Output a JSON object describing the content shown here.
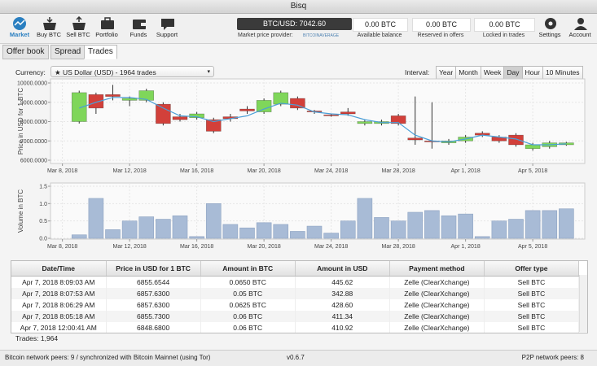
{
  "window_title": "Bisq",
  "nav": [
    "Market",
    "Buy BTC",
    "Sell BTC",
    "Portfolio",
    "Funds",
    "Support"
  ],
  "nav_right": [
    "Settings",
    "Account"
  ],
  "price_box": {
    "value": "BTC/USD: 7042.60",
    "provider_label": "Market price provider:",
    "provider": "BITCOINAVERAGE"
  },
  "balances": [
    {
      "value": "0.00 BTC",
      "label": "Available balance"
    },
    {
      "value": "0.00 BTC",
      "label": "Reserved in offers"
    },
    {
      "value": "0.00 BTC",
      "label": "Locked in trades"
    }
  ],
  "tabs": [
    "Offer book",
    "Spread",
    "Trades"
  ],
  "currency": {
    "label": "Currency:",
    "value": "★ US Dollar (USD) - 1964 trades"
  },
  "interval": {
    "label": "Interval:",
    "options": [
      "Year",
      "Month",
      "Week",
      "Day",
      "Hour",
      "10 Minutes"
    ],
    "selected_index": 3
  },
  "chart_data": [
    {
      "type": "candlestick",
      "y_label": "Price in USD for 1 BTC",
      "x": [
        "Mar 9, 2018",
        "Mar 10, 2018",
        "Mar 11, 2018",
        "Mar 12, 2018",
        "Mar 13, 2018",
        "Mar 14, 2018",
        "Mar 15, 2018",
        "Mar 16, 2018",
        "Mar 17, 2018",
        "Mar 18, 2018",
        "Mar 19, 2018",
        "Mar 20, 2018",
        "Mar 21, 2018",
        "Mar 22, 2018",
        "Mar 23, 2018",
        "Mar 24, 2018",
        "Mar 25, 2018",
        "Mar 26, 2018",
        "Mar 27, 2018",
        "Mar 28, 2018",
        "Mar 29, 2018",
        "Mar 30, 2018",
        "Mar 31, 2018",
        "Apr 1, 2018",
        "Apr 2, 2018",
        "Apr 3, 2018",
        "Apr 4, 2018",
        "Apr 5, 2018",
        "Apr 6, 2018",
        "Apr 7, 2018"
      ],
      "open": [
        8000,
        9400,
        9400,
        9100,
        9100,
        8900,
        8250,
        8200,
        8100,
        8250,
        8650,
        8500,
        8900,
        9200,
        8550,
        8350,
        8500,
        7900,
        7900,
        8300,
        7150,
        7000,
        6900,
        7000,
        7400,
        7200,
        7300,
        6600,
        6700,
        6800
      ],
      "high": [
        9600,
        9500,
        9900,
        9300,
        9700,
        9000,
        8400,
        8500,
        8200,
        8400,
        8800,
        9200,
        9600,
        9300,
        8600,
        8400,
        8700,
        8100,
        8100,
        8400,
        9300,
        9000,
        7100,
        7300,
        7500,
        7300,
        7400,
        6900,
        7000,
        6950
      ],
      "low": [
        7900,
        8400,
        9100,
        8800,
        9000,
        7800,
        8000,
        8100,
        7400,
        8000,
        8400,
        8400,
        8800,
        8600,
        8400,
        8250,
        8300,
        7800,
        7800,
        7800,
        6800,
        6600,
        6800,
        6900,
        7200,
        6900,
        6700,
        6500,
        6600,
        6750
      ],
      "close": [
        9500,
        8700,
        9300,
        9200,
        9600,
        7900,
        8100,
        8400,
        7500,
        8150,
        8550,
        9100,
        9500,
        8700,
        8500,
        8300,
        8400,
        8000,
        8000,
        7900,
        7050,
        6950,
        7000,
        7200,
        7300,
        7000,
        6800,
        6800,
        6900,
        6900
      ],
      "average": [
        8700,
        9000,
        9250,
        9250,
        9150,
        8700,
        8300,
        8250,
        8000,
        8150,
        8300,
        8650,
        8950,
        8850,
        8500,
        8400,
        8350,
        8100,
        7950,
        7950,
        7300,
        7000,
        6950,
        7100,
        7300,
        7200,
        7100,
        6800,
        6800,
        6850
      ],
      "up_color": "#7fd65a",
      "down_color": "#d2403a",
      "line_color": "#4a9fd8",
      "grid": true,
      "xlim": [
        "Mar 7, 2018",
        "Apr 8, 2018"
      ],
      "xticks": [
        "Mar 8, 2018",
        "Mar 12, 2018",
        "Mar 16, 2018",
        "Mar 20, 2018",
        "Mar 24, 2018",
        "Mar 28, 2018",
        "Apr 1, 2018",
        "Apr 5, 2018"
      ],
      "ylim": [
        6000,
        10000
      ],
      "yticks": [
        {
          "value": 6000,
          "label": "6000.0000"
        },
        {
          "value": 7000,
          "label": "7000.0000"
        },
        {
          "value": 8000,
          "label": "8000.0000"
        },
        {
          "value": 9000,
          "label": "9000.0000"
        },
        {
          "value": 10000,
          "label": "10000.0000"
        }
      ]
    },
    {
      "type": "bar",
      "y_label": "Volume in BTC",
      "x": [
        "Mar 9, 2018",
        "Mar 10, 2018",
        "Mar 11, 2018",
        "Mar 12, 2018",
        "Mar 13, 2018",
        "Mar 14, 2018",
        "Mar 15, 2018",
        "Mar 16, 2018",
        "Mar 17, 2018",
        "Mar 18, 2018",
        "Mar 19, 2018",
        "Mar 20, 2018",
        "Mar 21, 2018",
        "Mar 22, 2018",
        "Mar 23, 2018",
        "Mar 24, 2018",
        "Mar 25, 2018",
        "Mar 26, 2018",
        "Mar 27, 2018",
        "Mar 28, 2018",
        "Mar 29, 2018",
        "Mar 30, 2018",
        "Mar 31, 2018",
        "Apr 1, 2018",
        "Apr 2, 2018",
        "Apr 3, 2018",
        "Apr 4, 2018",
        "Apr 5, 2018",
        "Apr 6, 2018",
        "Apr 7, 2018"
      ],
      "values": [
        0.1,
        1.15,
        0.25,
        0.5,
        0.62,
        0.55,
        0.65,
        0.05,
        1.0,
        0.4,
        0.3,
        0.45,
        0.4,
        0.2,
        0.35,
        0.15,
        0.5,
        1.15,
        0.6,
        0.5,
        0.75,
        0.8,
        0.65,
        0.7,
        0.05,
        0.5,
        0.55,
        0.8,
        0.8,
        0.85
      ],
      "color": "#a8bbd6",
      "grid": true,
      "xlim": [
        "Mar 7, 2018",
        "Apr 8, 2018"
      ],
      "xticks": [
        "Mar 8, 2018",
        "Mar 12, 2018",
        "Mar 16, 2018",
        "Mar 20, 2018",
        "Mar 24, 2018",
        "Mar 28, 2018",
        "Apr 1, 2018",
        "Apr 5, 2018"
      ],
      "ylim": [
        0,
        1.5
      ],
      "yticks": [
        {
          "value": 0,
          "label": "0.0"
        },
        {
          "value": 0.5,
          "label": "0.5"
        },
        {
          "value": 1,
          "label": "1.0"
        },
        {
          "value": 1.5,
          "label": "1.5"
        }
      ]
    }
  ],
  "table": {
    "columns": [
      "Date/Time",
      "Price in USD for 1 BTC",
      "Amount in BTC",
      "Amount in USD",
      "Payment method",
      "Offer type"
    ],
    "rows": [
      [
        "Apr 7, 2018 8:09:03 AM",
        "6855.6544",
        "0.0650 BTC",
        "445.62",
        "Zelle (ClearXchange)",
        "Sell BTC"
      ],
      [
        "Apr 7, 2018 8:07:53 AM",
        "6857.6300",
        "0.05 BTC",
        "342.88",
        "Zelle (ClearXchange)",
        "Sell BTC"
      ],
      [
        "Apr 7, 2018 8:06:29 AM",
        "6857.6300",
        "0.0625 BTC",
        "428.60",
        "Zelle (ClearXchange)",
        "Sell BTC"
      ],
      [
        "Apr 7, 2018 8:05:18 AM",
        "6855.7300",
        "0.06 BTC",
        "411.34",
        "Zelle (ClearXchange)",
        "Sell BTC"
      ],
      [
        "Apr 7, 2018 12:00:41 AM",
        "6848.6800",
        "0.06 BTC",
        "410.92",
        "Zelle (ClearXchange)",
        "Sell BTC"
      ]
    ]
  },
  "trades_count": "Trades: 1,964",
  "status": {
    "left": "Bitcoin network peers: 9 / synchronized with Bitcoin Mainnet (using Tor)",
    "version": "v0.6.7",
    "right": "P2P network peers: 8"
  }
}
